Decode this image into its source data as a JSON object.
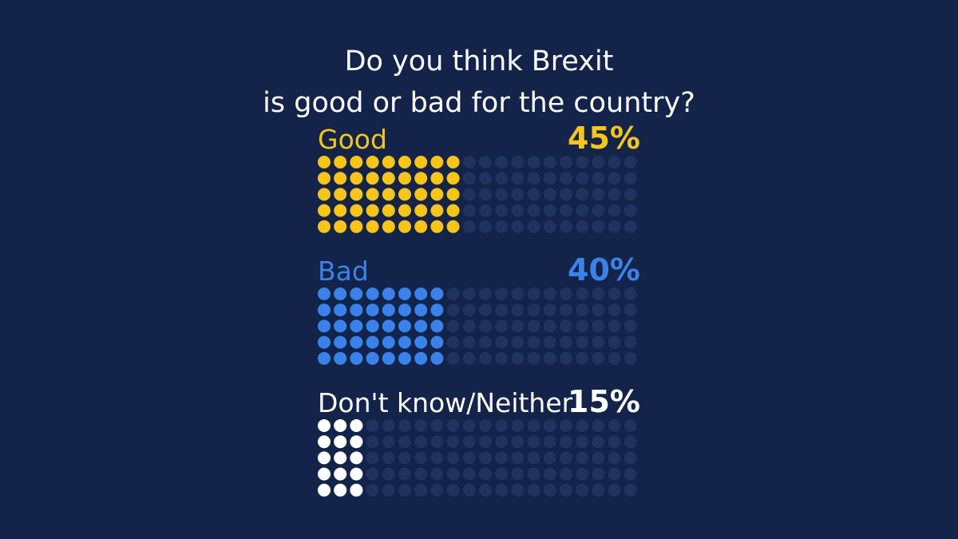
{
  "chart_data": {
    "type": "waffle",
    "title": [
      "Do you think Brexit",
      "is good or bad for the country?"
    ],
    "unit": "%",
    "grid": {
      "columns": 20,
      "rows": 5,
      "empty_color": "#1f3260"
    },
    "series": [
      {
        "name": "Good",
        "value": 45,
        "display": "45%",
        "color": "#f5c518",
        "label_color": "#f5c518"
      },
      {
        "name": "Bad",
        "value": 40,
        "display": "40%",
        "color": "#3b82e8",
        "label_color": "#3b82e8"
      },
      {
        "name": "Don't know/Neither",
        "value": 15,
        "display": "15%",
        "color": "#ffffff",
        "label_color": "#ffffff"
      }
    ]
  }
}
